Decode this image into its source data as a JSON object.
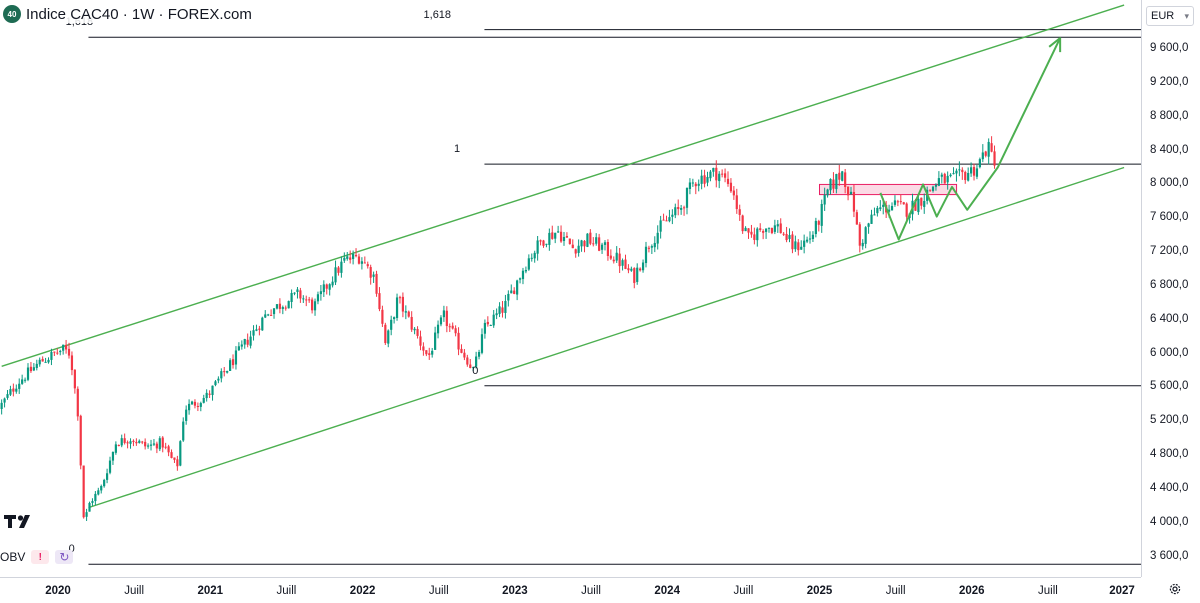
{
  "header": {
    "symbol_badge": "40",
    "title": "Indice CAC40 · 1W · FOREX.com",
    "currency": "EUR"
  },
  "indicator": {
    "name": "OBV",
    "warning": "!"
  },
  "price_axis": {
    "labels": [
      "9 600,0",
      "9 200,0",
      "8 800,0",
      "8 400,0",
      "8 000,0",
      "7 600,0",
      "7 200,0",
      "6 800,0",
      "6 400,0",
      "6 000,0",
      "5 600,0",
      "5 200,0",
      "4 800,0",
      "4 400,0",
      "4 000,0",
      "3 600,0"
    ],
    "values": [
      9600,
      9200,
      8800,
      8400,
      8000,
      7600,
      7200,
      6800,
      6400,
      6000,
      5600,
      5200,
      4800,
      4400,
      4000,
      3600
    ]
  },
  "time_axis": {
    "labels": [
      {
        "text": "2020",
        "t": 2020.0,
        "year": true
      },
      {
        "text": "Juill",
        "t": 2020.5,
        "year": false
      },
      {
        "text": "2021",
        "t": 2021.0,
        "year": true
      },
      {
        "text": "Juill",
        "t": 2021.5,
        "year": false
      },
      {
        "text": "2022",
        "t": 2022.0,
        "year": true
      },
      {
        "text": "Juill",
        "t": 2022.5,
        "year": false
      },
      {
        "text": "2023",
        "t": 2023.0,
        "year": true
      },
      {
        "text": "Juill",
        "t": 2023.5,
        "year": false
      },
      {
        "text": "2024",
        "t": 2024.0,
        "year": true
      },
      {
        "text": "Juill",
        "t": 2024.5,
        "year": false
      },
      {
        "text": "2025",
        "t": 2025.0,
        "year": true
      },
      {
        "text": "Juill",
        "t": 2025.5,
        "year": false
      },
      {
        "text": "2026",
        "t": 2026.0,
        "year": true
      },
      {
        "text": "Juill",
        "t": 2026.5,
        "year": false
      },
      {
        "text": "2027",
        "t": 2027.0,
        "year": true
      }
    ]
  },
  "fibonacci": {
    "levels": [
      {
        "label": "1,618",
        "value": 9740,
        "t_start": 2020.2,
        "label_t": 2020.05
      },
      {
        "label": "1,618",
        "value": 9830,
        "t_start": 2022.8,
        "label_t": 2022.4
      },
      {
        "label": "1",
        "value": 8240,
        "t_start": 2022.8,
        "label_t": 2022.6
      },
      {
        "label": "0",
        "value": 5620,
        "t_start": 2022.8,
        "label_t": 2022.72
      },
      {
        "label": "0",
        "value": 3510,
        "t_start": 2020.2,
        "label_t": 2020.07
      }
    ]
  },
  "colors": {
    "up": "#089981",
    "down": "#f23645",
    "channel": "#4caf50",
    "fib_line": "#131722",
    "zone_fill": "#f8bbd0",
    "zone_border": "#e91e63"
  },
  "chart_data": {
    "type": "candlestick",
    "title": "Indice CAC40 · 1W · FOREX.com",
    "xlabel": "",
    "ylabel": "EUR",
    "ylim": [
      3360,
      10180
    ],
    "xlim": [
      2019.63,
      2027.0
    ],
    "price_path": [
      {
        "t": 2019.63,
        "p": 5350
      },
      {
        "t": 2019.75,
        "p": 5650
      },
      {
        "t": 2019.9,
        "p": 5900
      },
      {
        "t": 2020.05,
        "p": 6050
      },
      {
        "t": 2020.1,
        "p": 6000
      },
      {
        "t": 2020.15,
        "p": 5300
      },
      {
        "t": 2020.19,
        "p": 4000
      },
      {
        "t": 2020.23,
        "p": 4250
      },
      {
        "t": 2020.3,
        "p": 4400
      },
      {
        "t": 2020.4,
        "p": 4950
      },
      {
        "t": 2020.5,
        "p": 5000
      },
      {
        "t": 2020.6,
        "p": 4900
      },
      {
        "t": 2020.7,
        "p": 4950
      },
      {
        "t": 2020.8,
        "p": 4650
      },
      {
        "t": 2020.85,
        "p": 5350
      },
      {
        "t": 2021.0,
        "p": 5500
      },
      {
        "t": 2021.2,
        "p": 6000
      },
      {
        "t": 2021.4,
        "p": 6500
      },
      {
        "t": 2021.5,
        "p": 6600
      },
      {
        "t": 2021.6,
        "p": 6700
      },
      {
        "t": 2021.7,
        "p": 6550
      },
      {
        "t": 2021.8,
        "p": 6850
      },
      {
        "t": 2021.9,
        "p": 7100
      },
      {
        "t": 2022.0,
        "p": 7150
      },
      {
        "t": 2022.1,
        "p": 6900
      },
      {
        "t": 2022.17,
        "p": 6100
      },
      {
        "t": 2022.25,
        "p": 6650
      },
      {
        "t": 2022.35,
        "p": 6300
      },
      {
        "t": 2022.45,
        "p": 5950
      },
      {
        "t": 2022.55,
        "p": 6450
      },
      {
        "t": 2022.65,
        "p": 6100
      },
      {
        "t": 2022.75,
        "p": 5800
      },
      {
        "t": 2022.82,
        "p": 6300
      },
      {
        "t": 2022.95,
        "p": 6550
      },
      {
        "t": 2023.1,
        "p": 7100
      },
      {
        "t": 2023.2,
        "p": 7350
      },
      {
        "t": 2023.3,
        "p": 7450
      },
      {
        "t": 2023.4,
        "p": 7250
      },
      {
        "t": 2023.5,
        "p": 7350
      },
      {
        "t": 2023.6,
        "p": 7250
      },
      {
        "t": 2023.7,
        "p": 7100
      },
      {
        "t": 2023.8,
        "p": 6900
      },
      {
        "t": 2023.9,
        "p": 7300
      },
      {
        "t": 2024.0,
        "p": 7550
      },
      {
        "t": 2024.1,
        "p": 7700
      },
      {
        "t": 2024.2,
        "p": 8050
      },
      {
        "t": 2024.35,
        "p": 8150
      },
      {
        "t": 2024.45,
        "p": 7950
      },
      {
        "t": 2024.5,
        "p": 7550
      },
      {
        "t": 2024.55,
        "p": 7350
      },
      {
        "t": 2024.65,
        "p": 7500
      },
      {
        "t": 2024.75,
        "p": 7500
      },
      {
        "t": 2024.85,
        "p": 7250
      },
      {
        "t": 2024.95,
        "p": 7350
      },
      {
        "t": 2025.0,
        "p": 7500
      },
      {
        "t": 2025.08,
        "p": 7950
      },
      {
        "t": 2025.17,
        "p": 8150
      },
      {
        "t": 2025.25,
        "p": 7700
      },
      {
        "t": 2025.28,
        "p": 7250
      },
      {
        "t": 2025.33,
        "p": 7500
      },
      {
        "t": 2025.4,
        "p": 7700
      },
      {
        "t": 2025.5,
        "p": 7750
      },
      {
        "t": 2025.6,
        "p": 7700
      },
      {
        "t": 2025.7,
        "p": 7850
      },
      {
        "t": 2025.8,
        "p": 8050
      },
      {
        "t": 2025.9,
        "p": 8050
      },
      {
        "t": 2026.0,
        "p": 8150
      },
      {
        "t": 2026.05,
        "p": 8200
      },
      {
        "t": 2026.08,
        "p": 8300
      },
      {
        "t": 2026.12,
        "p": 8450
      },
      {
        "t": 2026.16,
        "p": 8300
      }
    ],
    "annotations": {
      "channel_upper": {
        "t1": 2019.63,
        "p1": 5850,
        "t2": 2027.0,
        "p2": 10120
      },
      "channel_lower": {
        "t1": 2020.2,
        "p1": 4180,
        "t2": 2027.0,
        "p2": 8200
      },
      "projection": [
        {
          "t": 2025.4,
          "p": 7900
        },
        {
          "t": 2025.52,
          "p": 7350
        },
        {
          "t": 2025.68,
          "p": 8000
        },
        {
          "t": 2025.77,
          "p": 7620
        },
        {
          "t": 2025.87,
          "p": 7970
        },
        {
          "t": 2025.97,
          "p": 7700
        },
        {
          "t": 2026.17,
          "p": 8200
        },
        {
          "t": 2026.58,
          "p": 9730
        }
      ],
      "zone": {
        "t1": 2025.0,
        "t2": 2025.9,
        "p1": 7880,
        "p2": 8000
      }
    }
  }
}
